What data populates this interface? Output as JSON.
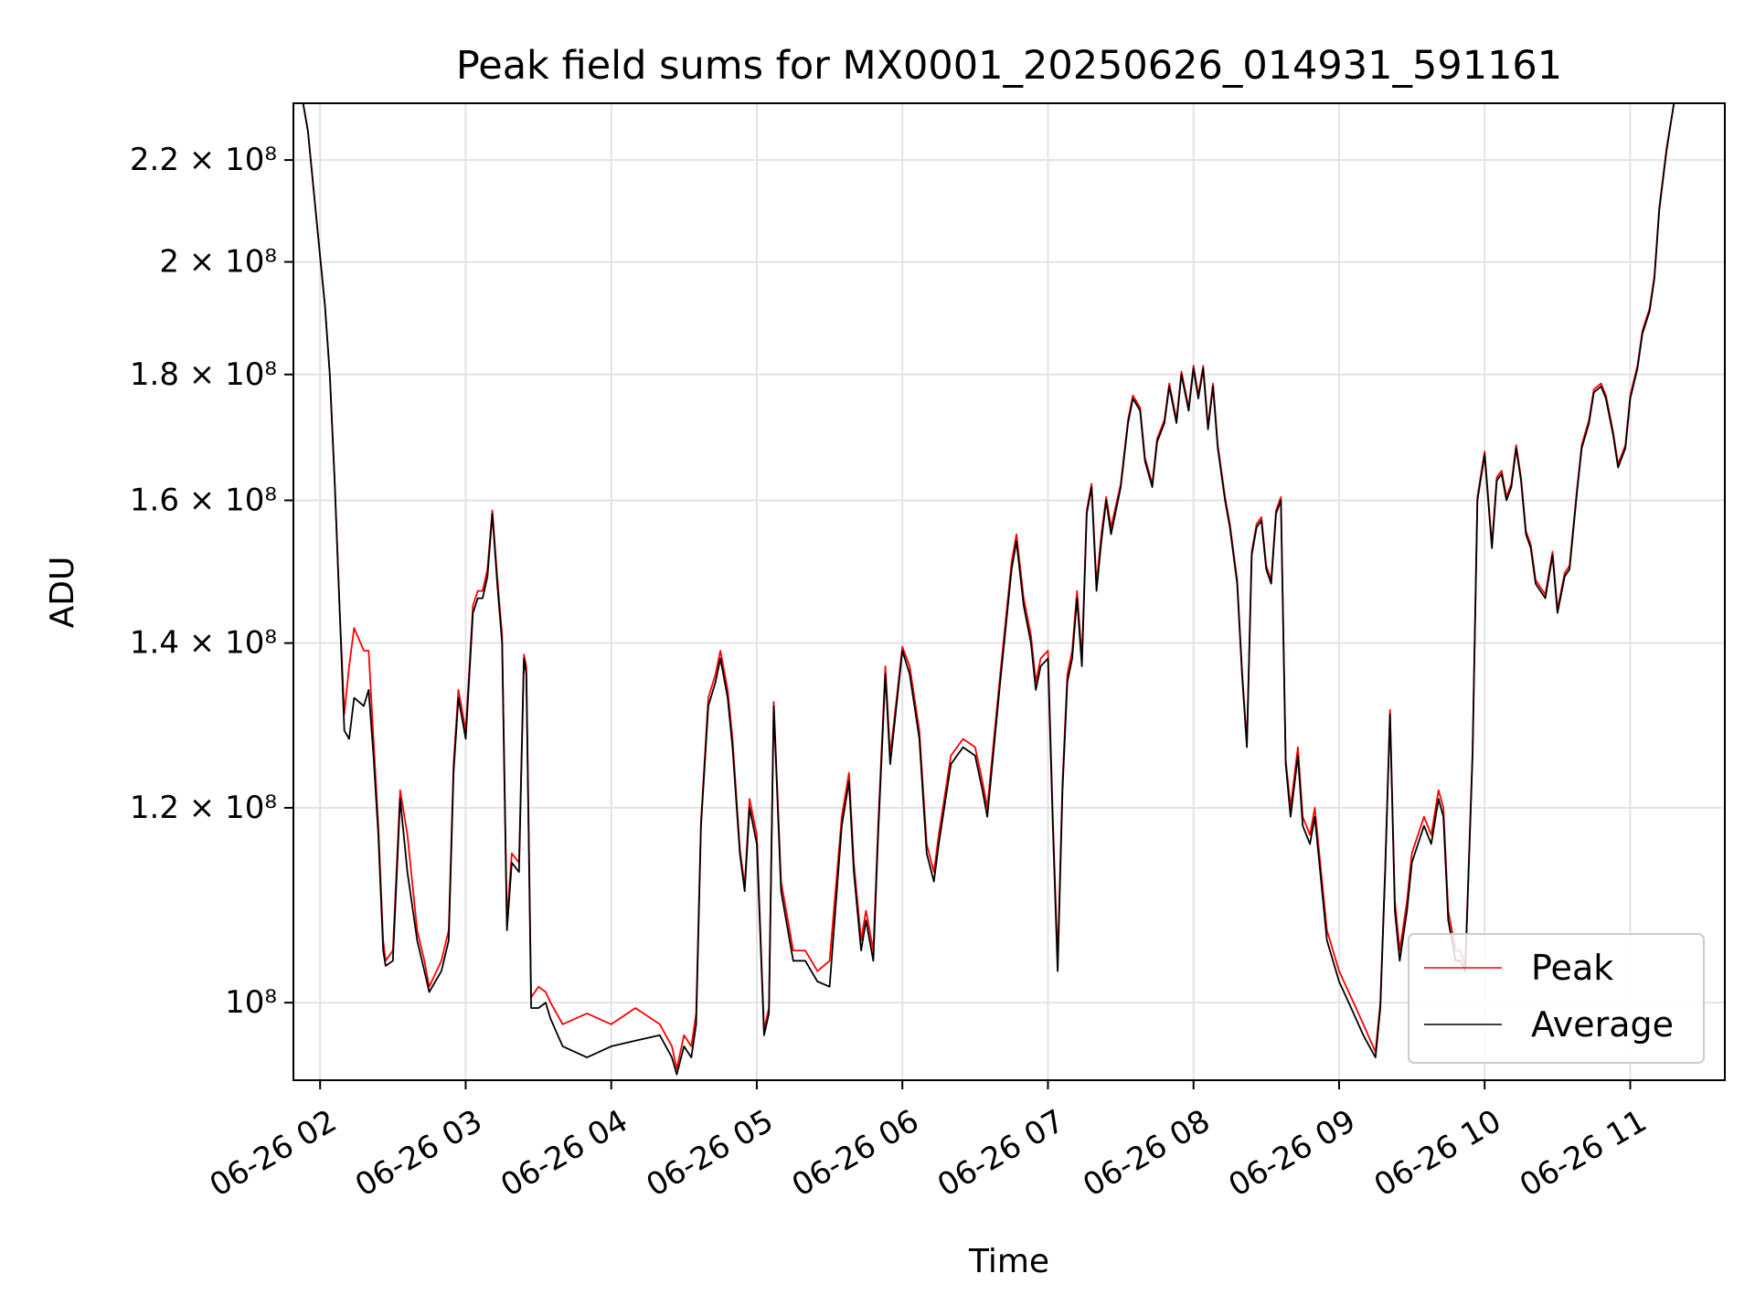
{
  "chart_data": {
    "type": "line",
    "title": "Peak field sums for MX0001_20250626_014931_591161",
    "xlabel": "Time",
    "ylabel": "ADU",
    "y_scale": "log",
    "ylim": [
      93000000,
      232000000
    ],
    "x_tick_labels": [
      "06-26 02",
      "06-26 03",
      "06-26 04",
      "06-26 05",
      "06-26 06",
      "06-26 07",
      "06-26 08",
      "06-26 09",
      "06-26 10",
      "06-26 11"
    ],
    "x_ticks": [
      "2025-06-26 02:00",
      "2025-06-26 03:00",
      "2025-06-26 04:00",
      "2025-06-26 05:00",
      "2025-06-26 06:00",
      "2025-06-26 07:00",
      "2025-06-26 08:00",
      "2025-06-26 09:00",
      "2025-06-26 10:00",
      "2025-06-26 11:00"
    ],
    "xlim": [
      "2025-06-26 01:49",
      "2025-06-26 11:39"
    ],
    "y_ticks": [
      {
        "label": "10⁸",
        "value": 100000000
      },
      {
        "label": "1.2 × 10⁸",
        "value": 120000000
      },
      {
        "label": "1.4 × 10⁸",
        "value": 140000000
      },
      {
        "label": "1.6 × 10⁸",
        "value": 160000000
      },
      {
        "label": "1.8 × 10⁸",
        "value": 180000000
      },
      {
        "label": "2 × 10⁸",
        "value": 200000000
      },
      {
        "label": "2.2 × 10⁸",
        "value": 220000000
      }
    ],
    "grid": true,
    "legend_position": "lower-right",
    "series": [
      {
        "name": "Peak",
        "color": "#ff0000"
      },
      {
        "name": "Average",
        "color": "#000000"
      }
    ],
    "x": [
      "01:49",
      "01:50",
      "01:51",
      "01:53",
      "01:55",
      "02:00",
      "02:02",
      "02:04",
      "02:06",
      "02:08",
      "02:10",
      "02:12",
      "02:14",
      "02:18",
      "02:20",
      "02:22",
      "02:24",
      "02:26",
      "02:27",
      "02:30",
      "02:33",
      "02:36",
      "02:40",
      "02:43",
      "02:45",
      "02:50",
      "02:53",
      "02:55",
      "02:57",
      "03:00",
      "03:03",
      "03:05",
      "03:07",
      "03:09",
      "03:11",
      "03:13",
      "03:15",
      "03:17",
      "03:19",
      "03:22",
      "03:24",
      "03:25",
      "03:27",
      "03:30",
      "03:33",
      "03:35",
      "03:40",
      "03:50",
      "04:00",
      "04:10",
      "04:20",
      "04:25",
      "04:27",
      "04:30",
      "04:33",
      "04:35",
      "04:37",
      "04:40",
      "04:43",
      "04:45",
      "04:48",
      "04:50",
      "04:53",
      "04:55",
      "04:57",
      "05:00",
      "05:03",
      "05:05",
      "05:07",
      "05:10",
      "05:15",
      "05:20",
      "05:25",
      "05:30",
      "05:35",
      "05:38",
      "05:40",
      "05:43",
      "05:45",
      "05:48",
      "05:50",
      "05:53",
      "05:55",
      "06:00",
      "06:03",
      "06:07",
      "06:10",
      "06:13",
      "06:15",
      "06:20",
      "06:25",
      "06:30",
      "06:33",
      "06:35",
      "06:40",
      "06:45",
      "06:47",
      "06:50",
      "06:53",
      "06:55",
      "06:57",
      "07:00",
      "07:02",
      "07:04",
      "07:06",
      "07:08",
      "07:10",
      "07:12",
      "07:14",
      "07:16",
      "07:18",
      "07:20",
      "07:22",
      "07:24",
      "07:26",
      "07:30",
      "07:33",
      "07:35",
      "07:38",
      "07:40",
      "07:43",
      "07:45",
      "07:48",
      "07:50",
      "07:53",
      "07:55",
      "07:58",
      "08:00",
      "08:02",
      "08:04",
      "08:06",
      "08:08",
      "08:10",
      "08:13",
      "08:15",
      "08:18",
      "08:20",
      "08:22",
      "08:24",
      "08:26",
      "08:28",
      "08:30",
      "08:32",
      "08:34",
      "08:36",
      "08:38",
      "08:40",
      "08:43",
      "08:45",
      "08:48",
      "08:50",
      "08:53",
      "08:55",
      "09:00",
      "09:05",
      "09:10",
      "09:15",
      "09:17",
      "09:19",
      "09:21",
      "09:23",
      "09:25",
      "09:28",
      "09:30",
      "09:35",
      "09:38",
      "09:41",
      "09:43",
      "09:45",
      "09:48",
      "09:50",
      "09:52",
      "09:55",
      "09:57",
      "10:00",
      "10:03",
      "10:05",
      "10:07",
      "10:09",
      "10:11",
      "10:13",
      "10:15",
      "10:17",
      "10:19",
      "10:21",
      "10:25",
      "10:28",
      "10:30",
      "10:33",
      "10:35",
      "10:38",
      "10:40",
      "10:43",
      "10:45",
      "10:48",
      "10:50",
      "10:53",
      "10:55",
      "10:58",
      "11:00",
      "11:03",
      "11:05",
      "11:08",
      "11:10",
      "11:12",
      "11:15",
      "11:18",
      "11:20",
      "11:22",
      "11:25",
      "11:28",
      "11:30",
      "11:33",
      "11:36",
      "11:38"
    ],
    "average": [
      232000000,
      232000000,
      232000000,
      232000000,
      226000000,
      201000000,
      192000000,
      180000000,
      163000000,
      145000000,
      129000000,
      128000000,
      133000000,
      132000000,
      134000000,
      126000000,
      117000000,
      105000000,
      103500000,
      104000000,
      121000000,
      113000000,
      106000000,
      103000000,
      101000000,
      103000000,
      106000000,
      124000000,
      133000000,
      128000000,
      144000000,
      146000000,
      146000000,
      149000000,
      158000000,
      148000000,
      140000000,
      107000000,
      114000000,
      113000000,
      138000000,
      136000000,
      99500000,
      99500000,
      100000000,
      98500000,
      96000000,
      95000000,
      96000000,
      96500000,
      97000000,
      95000000,
      93500000,
      96000000,
      95000000,
      98000000,
      118000000,
      132000000,
      135000000,
      138000000,
      133000000,
      127000000,
      115000000,
      111000000,
      120000000,
      116000000,
      97000000,
      99000000,
      132000000,
      111000000,
      104000000,
      104000000,
      102000000,
      101500000,
      118000000,
      123000000,
      113000000,
      105000000,
      108000000,
      104000000,
      117000000,
      136000000,
      125000000,
      139000000,
      136000000,
      128000000,
      115000000,
      112000000,
      116000000,
      125000000,
      127000000,
      126000000,
      122000000,
      119000000,
      134000000,
      150000000,
      154000000,
      145000000,
      140000000,
      134000000,
      137000000,
      138000000,
      118000000,
      103000000,
      122000000,
      135000000,
      138000000,
      146000000,
      137000000,
      158000000,
      162000000,
      147000000,
      154000000,
      160000000,
      155000000,
      162000000,
      172000000,
      176000000,
      174000000,
      166000000,
      162000000,
      169000000,
      172000000,
      178000000,
      172000000,
      180000000,
      174000000,
      181000000,
      176000000,
      181000000,
      171000000,
      178000000,
      168000000,
      160000000,
      156000000,
      148000000,
      136000000,
      127000000,
      152000000,
      156000000,
      157000000,
      150000000,
      148000000,
      158000000,
      160000000,
      125000000,
      119000000,
      126000000,
      118000000,
      116000000,
      119000000,
      111000000,
      106000000,
      102000000,
      99500000,
      97000000,
      95000000,
      99500000,
      113000000,
      131000000,
      109000000,
      104000000,
      109000000,
      114000000,
      118000000,
      116000000,
      121000000,
      119000000,
      108000000,
      104000000,
      104000000,
      103000000,
      126000000,
      160000000,
      167000000,
      153000000,
      163000000,
      164000000,
      160000000,
      162000000,
      168000000,
      163000000,
      155000000,
      153000000,
      148000000,
      146000000,
      152000000,
      144000000,
      149000000,
      150000000,
      161000000,
      168000000,
      172000000,
      177000000,
      178000000,
      176000000,
      170000000,
      165000000,
      168000000,
      176000000,
      181000000,
      187000000,
      191000000,
      197000000,
      210000000,
      222000000,
      232000000
    ],
    "peak": [
      232000000,
      232000000,
      232000000,
      232000000,
      226000000,
      201000000,
      192000000,
      180000000,
      163000000,
      145000000,
      131000000,
      137000000,
      142000000,
      139000000,
      139000000,
      128000000,
      118000000,
      106000000,
      104000000,
      105000000,
      122000000,
      117000000,
      107000000,
      104000000,
      101500000,
      104000000,
      107000000,
      125000000,
      134000000,
      129000000,
      145000000,
      147000000,
      147000000,
      150000000,
      158500000,
      149000000,
      141000000,
      108000000,
      115000000,
      114000000,
      138500000,
      137000000,
      100500000,
      101500000,
      101000000,
      100000000,
      98000000,
      99000000,
      98000000,
      99500000,
      98000000,
      96000000,
      94000000,
      97000000,
      96000000,
      99000000,
      118500000,
      133000000,
      136000000,
      139000000,
      134000000,
      128000000,
      115500000,
      111500000,
      121000000,
      117000000,
      97500000,
      99500000,
      132500000,
      112000000,
      105000000,
      105000000,
      103000000,
      104000000,
      119000000,
      124000000,
      114000000,
      106000000,
      109000000,
      105000000,
      118000000,
      137000000,
      126000000,
      139500000,
      137000000,
      129000000,
      116000000,
      113000000,
      117000000,
      126000000,
      128000000,
      127000000,
      123000000,
      120000000,
      135000000,
      151000000,
      155000000,
      146000000,
      141000000,
      135000000,
      138000000,
      139000000,
      119000000,
      104000000,
      123000000,
      136000000,
      139000000,
      147000000,
      138000000,
      158500000,
      162500000,
      148000000,
      155000000,
      160500000,
      156000000,
      162500000,
      172500000,
      176500000,
      174500000,
      166500000,
      162500000,
      169500000,
      172500000,
      178500000,
      172500000,
      180500000,
      174500000,
      181500000,
      176500000,
      181500000,
      171500000,
      178500000,
      168500000,
      160500000,
      156500000,
      148500000,
      136500000,
      127500000,
      152500000,
      156500000,
      157500000,
      150500000,
      148500000,
      158500000,
      160500000,
      125500000,
      120000000,
      127000000,
      119000000,
      117000000,
      120000000,
      112000000,
      107000000,
      103000000,
      100500000,
      98000000,
      95500000,
      100000000,
      113500000,
      131500000,
      110000000,
      105000000,
      110000000,
      115000000,
      119000000,
      117000000,
      122000000,
      120000000,
      109000000,
      105000000,
      105000000,
      103500000,
      126500000,
      160500000,
      167500000,
      153500000,
      163500000,
      164500000,
      160500000,
      162500000,
      168500000,
      163500000,
      155500000,
      153500000,
      148500000,
      146500000,
      152500000,
      144500000,
      149500000,
      150500000,
      161500000,
      168500000,
      172500000,
      177500000,
      178500000,
      176500000,
      170500000,
      165500000,
      168500000,
      176500000,
      181500000,
      187500000,
      191500000,
      197500000,
      210500000,
      222500000,
      232000000
    ]
  }
}
